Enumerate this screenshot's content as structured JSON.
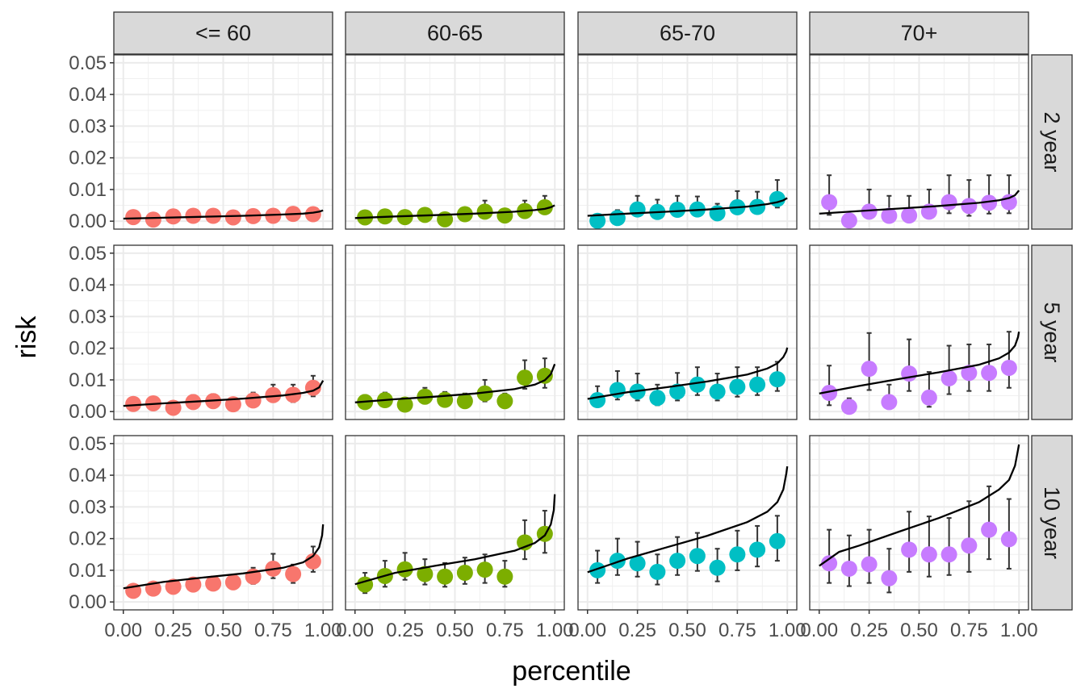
{
  "chart_data": {
    "type": "scatter",
    "facet_cols": [
      "<= 60",
      "60-65",
      "65-70",
      "70+"
    ],
    "facet_rows": [
      "2 year",
      "5 year",
      "10 year"
    ],
    "xlabel": "percentile",
    "ylabel": "risk",
    "xlim": [
      0,
      1
    ],
    "ylim": [
      0,
      0.05
    ],
    "x_ticks": [
      0.0,
      0.25,
      0.5,
      0.75,
      1.0
    ],
    "x_tick_labels": [
      "0.00",
      "0.25",
      "0.50",
      "0.75",
      "1.00"
    ],
    "y_ticks": [
      0.0,
      0.01,
      0.02,
      0.03,
      0.04,
      0.05
    ],
    "y_tick_labels": [
      "0.00",
      "0.01",
      "0.02",
      "0.03",
      "0.04",
      "0.05"
    ],
    "grid": true,
    "legend": "none",
    "colors": [
      "#F8766D",
      "#7CAE00",
      "#00BFC4",
      "#C77CFF"
    ],
    "curve_color": "#000000",
    "x": [
      0.05,
      0.15,
      0.25,
      0.35,
      0.45,
      0.55,
      0.65,
      0.75,
      0.85,
      0.95
    ],
    "panels": [
      {
        "row": "2 year",
        "col": "<= 60",
        "y": [
          0.0013,
          0.0005,
          0.0015,
          0.0017,
          0.0017,
          0.0012,
          0.0016,
          0.0017,
          0.0023,
          0.0022
        ],
        "ymin": [
          0.0005,
          0.0001,
          0.0006,
          0.0007,
          0.0008,
          0.0005,
          0.0007,
          0.0008,
          0.0011,
          0.001
        ],
        "ymax": [
          0.0024,
          0.0012,
          0.0026,
          0.0028,
          0.0028,
          0.0021,
          0.0027,
          0.0028,
          0.004,
          0.0036
        ],
        "curve": [
          [
            0,
            0.0008
          ],
          [
            0.2,
            0.0011
          ],
          [
            0.4,
            0.0014
          ],
          [
            0.6,
            0.0017
          ],
          [
            0.8,
            0.0021
          ],
          [
            0.9,
            0.0024
          ],
          [
            0.95,
            0.0027
          ],
          [
            0.98,
            0.003
          ],
          [
            1,
            0.0034
          ]
        ]
      },
      {
        "row": "2 year",
        "col": "60-65",
        "y": [
          0.0012,
          0.0015,
          0.0013,
          0.002,
          0.0006,
          0.0022,
          0.003,
          0.0018,
          0.0032,
          0.0044
        ],
        "ymin": [
          0.0004,
          0.0006,
          0.0005,
          0.0009,
          0.0001,
          0.001,
          0.0016,
          0.0007,
          0.0018,
          0.0026
        ],
        "ymax": [
          0.0022,
          0.0026,
          0.0023,
          0.0033,
          0.0013,
          0.0036,
          0.0065,
          0.003,
          0.0065,
          0.008
        ],
        "curve": [
          [
            0,
            0.001
          ],
          [
            0.2,
            0.0015
          ],
          [
            0.4,
            0.0019
          ],
          [
            0.6,
            0.0024
          ],
          [
            0.8,
            0.003
          ],
          [
            0.9,
            0.0035
          ],
          [
            0.95,
            0.0039
          ],
          [
            0.98,
            0.0044
          ],
          [
            1,
            0.005
          ]
        ]
      },
      {
        "row": "2 year",
        "col": "65-70",
        "y": [
          0.0001,
          0.001,
          0.0037,
          0.0029,
          0.0036,
          0.0037,
          0.0025,
          0.0044,
          0.0045,
          0.007
        ],
        "ymin": [
          0.0,
          0.0002,
          0.0018,
          0.0013,
          0.0018,
          0.0019,
          0.0011,
          0.0025,
          0.0026,
          0.0043
        ],
        "ymax": [
          0.0005,
          0.0035,
          0.008,
          0.0068,
          0.008,
          0.0078,
          0.0055,
          0.0095,
          0.0093,
          0.013
        ],
        "curve": [
          [
            0,
            0.0017
          ],
          [
            0.2,
            0.0024
          ],
          [
            0.4,
            0.003
          ],
          [
            0.6,
            0.0037
          ],
          [
            0.8,
            0.0046
          ],
          [
            0.9,
            0.0054
          ],
          [
            0.95,
            0.006
          ],
          [
            0.98,
            0.0066
          ],
          [
            1,
            0.0073
          ]
        ]
      },
      {
        "row": "2 year",
        "col": "70+",
        "y": [
          0.006,
          0.0002,
          0.003,
          0.0017,
          0.0018,
          0.003,
          0.006,
          0.0048,
          0.0058,
          0.006
        ],
        "ymin": [
          0.002,
          0.0,
          0.0008,
          0.0003,
          0.0003,
          0.0009,
          0.0025,
          0.0017,
          0.0024,
          0.0025
        ],
        "ymax": [
          0.0145,
          0.0015,
          0.01,
          0.008,
          0.008,
          0.01,
          0.0145,
          0.013,
          0.0145,
          0.0145
        ],
        "curve": [
          [
            0,
            0.0024
          ],
          [
            0.2,
            0.0032
          ],
          [
            0.4,
            0.004
          ],
          [
            0.6,
            0.0048
          ],
          [
            0.8,
            0.0058
          ],
          [
            0.9,
            0.0066
          ],
          [
            0.95,
            0.0073
          ],
          [
            0.98,
            0.0082
          ],
          [
            1,
            0.0097
          ]
        ]
      },
      {
        "row": "5 year",
        "col": "<= 60",
        "y": [
          0.0024,
          0.0026,
          0.0012,
          0.003,
          0.0033,
          0.0023,
          0.0035,
          0.0052,
          0.0053,
          0.0075
        ],
        "ymin": [
          0.0009,
          0.001,
          0.0003,
          0.0013,
          0.0015,
          0.0009,
          0.0017,
          0.003,
          0.003,
          0.0048
        ],
        "ymax": [
          0.004,
          0.0045,
          0.0025,
          0.0052,
          0.0055,
          0.004,
          0.006,
          0.0085,
          0.0085,
          0.0113
        ],
        "curve": [
          [
            0,
            0.0018
          ],
          [
            0.2,
            0.0026
          ],
          [
            0.4,
            0.0033
          ],
          [
            0.6,
            0.0041
          ],
          [
            0.8,
            0.0051
          ],
          [
            0.9,
            0.0059
          ],
          [
            0.95,
            0.0066
          ],
          [
            0.98,
            0.0076
          ],
          [
            1,
            0.0098
          ]
        ]
      },
      {
        "row": "5 year",
        "col": "60-65",
        "y": [
          0.003,
          0.0036,
          0.0022,
          0.0047,
          0.0037,
          0.0033,
          0.0057,
          0.0033,
          0.0107,
          0.0113
        ],
        "ymin": [
          0.0012,
          0.0017,
          0.0008,
          0.0025,
          0.0018,
          0.0015,
          0.0032,
          0.0015,
          0.0072,
          0.0075
        ],
        "ymax": [
          0.0052,
          0.006,
          0.004,
          0.0075,
          0.0062,
          0.0057,
          0.01,
          0.0057,
          0.0162,
          0.0168
        ],
        "curve": [
          [
            0,
            0.0029
          ],
          [
            0.2,
            0.0039
          ],
          [
            0.4,
            0.0047
          ],
          [
            0.6,
            0.0057
          ],
          [
            0.8,
            0.0071
          ],
          [
            0.9,
            0.0085
          ],
          [
            0.95,
            0.0099
          ],
          [
            0.98,
            0.0118
          ],
          [
            1,
            0.015
          ]
        ]
      },
      {
        "row": "5 year",
        "col": "65-70",
        "y": [
          0.0036,
          0.0068,
          0.0063,
          0.0043,
          0.0063,
          0.0085,
          0.0063,
          0.0078,
          0.0085,
          0.0102
        ],
        "ymin": [
          0.0017,
          0.0038,
          0.0035,
          0.002,
          0.0035,
          0.0052,
          0.0035,
          0.0047,
          0.0052,
          0.0065
        ],
        "ymax": [
          0.008,
          0.0128,
          0.012,
          0.0085,
          0.0122,
          0.014,
          0.012,
          0.014,
          0.014,
          0.0157
        ],
        "curve": [
          [
            0,
            0.004
          ],
          [
            0.2,
            0.0061
          ],
          [
            0.4,
            0.0077
          ],
          [
            0.6,
            0.0095
          ],
          [
            0.8,
            0.0117
          ],
          [
            0.9,
            0.0136
          ],
          [
            0.95,
            0.0152
          ],
          [
            0.98,
            0.0172
          ],
          [
            0.995,
            0.019
          ],
          [
            1,
            0.0202
          ]
        ]
      },
      {
        "row": "5 year",
        "col": "70+",
        "y": [
          0.0059,
          0.0015,
          0.0135,
          0.003,
          0.012,
          0.0044,
          0.0105,
          0.0122,
          0.0122,
          0.0138
        ],
        "ymin": [
          0.002,
          0.0002,
          0.0068,
          0.0008,
          0.0065,
          0.0015,
          0.0055,
          0.0065,
          0.0065,
          0.0075
        ],
        "ymax": [
          0.0145,
          0.0042,
          0.0248,
          0.0085,
          0.0228,
          0.0125,
          0.0208,
          0.0212,
          0.0212,
          0.0252
        ],
        "curve": [
          [
            0,
            0.0057
          ],
          [
            0.2,
            0.0081
          ],
          [
            0.4,
            0.0103
          ],
          [
            0.6,
            0.0124
          ],
          [
            0.8,
            0.0148
          ],
          [
            0.9,
            0.0168
          ],
          [
            0.95,
            0.0186
          ],
          [
            0.98,
            0.0208
          ],
          [
            0.995,
            0.0235
          ],
          [
            1,
            0.0252
          ]
        ]
      },
      {
        "row": "10 year",
        "col": "<= 60",
        "y": [
          0.0035,
          0.0042,
          0.0048,
          0.0055,
          0.0058,
          0.0062,
          0.008,
          0.0105,
          0.0088,
          0.0128
        ],
        "ymin": [
          0.0022,
          0.0028,
          0.0032,
          0.0038,
          0.004,
          0.0043,
          0.0057,
          0.0075,
          0.006,
          0.0095
        ],
        "ymax": [
          0.0055,
          0.006,
          0.0068,
          0.0075,
          0.008,
          0.0083,
          0.0108,
          0.0152,
          0.0118,
          0.0175
        ],
        "curve": [
          [
            0,
            0.0043
          ],
          [
            0.2,
            0.0063
          ],
          [
            0.4,
            0.0077
          ],
          [
            0.6,
            0.009
          ],
          [
            0.8,
            0.0108
          ],
          [
            0.9,
            0.0125
          ],
          [
            0.95,
            0.0145
          ],
          [
            0.98,
            0.0172
          ],
          [
            0.995,
            0.021
          ],
          [
            1,
            0.0245
          ]
        ]
      },
      {
        "row": "10 year",
        "col": "60-65",
        "y": [
          0.0055,
          0.0082,
          0.0103,
          0.0088,
          0.008,
          0.0092,
          0.0102,
          0.008,
          0.0188,
          0.0215
        ],
        "ymin": [
          0.0028,
          0.0048,
          0.007,
          0.0055,
          0.0048,
          0.0057,
          0.006,
          0.0048,
          0.0135,
          0.0155
        ],
        "ymax": [
          0.0092,
          0.013,
          0.0155,
          0.0135,
          0.0123,
          0.014,
          0.015,
          0.013,
          0.0258,
          0.0288
        ],
        "curve": [
          [
            0,
            0.0056
          ],
          [
            0.2,
            0.0092
          ],
          [
            0.4,
            0.0114
          ],
          [
            0.6,
            0.0135
          ],
          [
            0.8,
            0.0162
          ],
          [
            0.9,
            0.0186
          ],
          [
            0.95,
            0.021
          ],
          [
            0.98,
            0.0245
          ],
          [
            0.995,
            0.029
          ],
          [
            1,
            0.034
          ]
        ]
      },
      {
        "row": "10 year",
        "col": "65-70",
        "y": [
          0.01,
          0.013,
          0.0122,
          0.0095,
          0.013,
          0.0145,
          0.0108,
          0.015,
          0.0165,
          0.0192
        ],
        "ymin": [
          0.006,
          0.0085,
          0.008,
          0.0055,
          0.0085,
          0.0098,
          0.0065,
          0.01,
          0.0112,
          0.013
        ],
        "ymax": [
          0.0162,
          0.02,
          0.019,
          0.015,
          0.0205,
          0.0218,
          0.0168,
          0.0225,
          0.024,
          0.0272
        ],
        "curve": [
          [
            0,
            0.0094
          ],
          [
            0.2,
            0.0137
          ],
          [
            0.4,
            0.0173
          ],
          [
            0.6,
            0.0209
          ],
          [
            0.8,
            0.0252
          ],
          [
            0.9,
            0.0285
          ],
          [
            0.95,
            0.0315
          ],
          [
            0.98,
            0.0355
          ],
          [
            0.995,
            0.0405
          ],
          [
            1,
            0.0428
          ]
        ]
      },
      {
        "row": "10 year",
        "col": "70+",
        "y": [
          0.0122,
          0.0105,
          0.0119,
          0.0075,
          0.0165,
          0.015,
          0.015,
          0.0178,
          0.0228,
          0.0198
        ],
        "ymin": [
          0.006,
          0.005,
          0.006,
          0.003,
          0.0095,
          0.008,
          0.0085,
          0.0095,
          0.0135,
          0.0105
        ],
        "ymax": [
          0.0228,
          0.021,
          0.0228,
          0.0168,
          0.0285,
          0.027,
          0.0265,
          0.0318,
          0.0365,
          0.0325
        ],
        "curve": [
          [
            0,
            0.0114
          ],
          [
            0.1,
            0.0158
          ],
          [
            0.2,
            0.0178
          ],
          [
            0.4,
            0.0222
          ],
          [
            0.6,
            0.0265
          ],
          [
            0.8,
            0.0315
          ],
          [
            0.9,
            0.0355
          ],
          [
            0.95,
            0.0385
          ],
          [
            0.98,
            0.043
          ],
          [
            0.995,
            0.048
          ],
          [
            1,
            0.0497
          ]
        ]
      }
    ]
  }
}
